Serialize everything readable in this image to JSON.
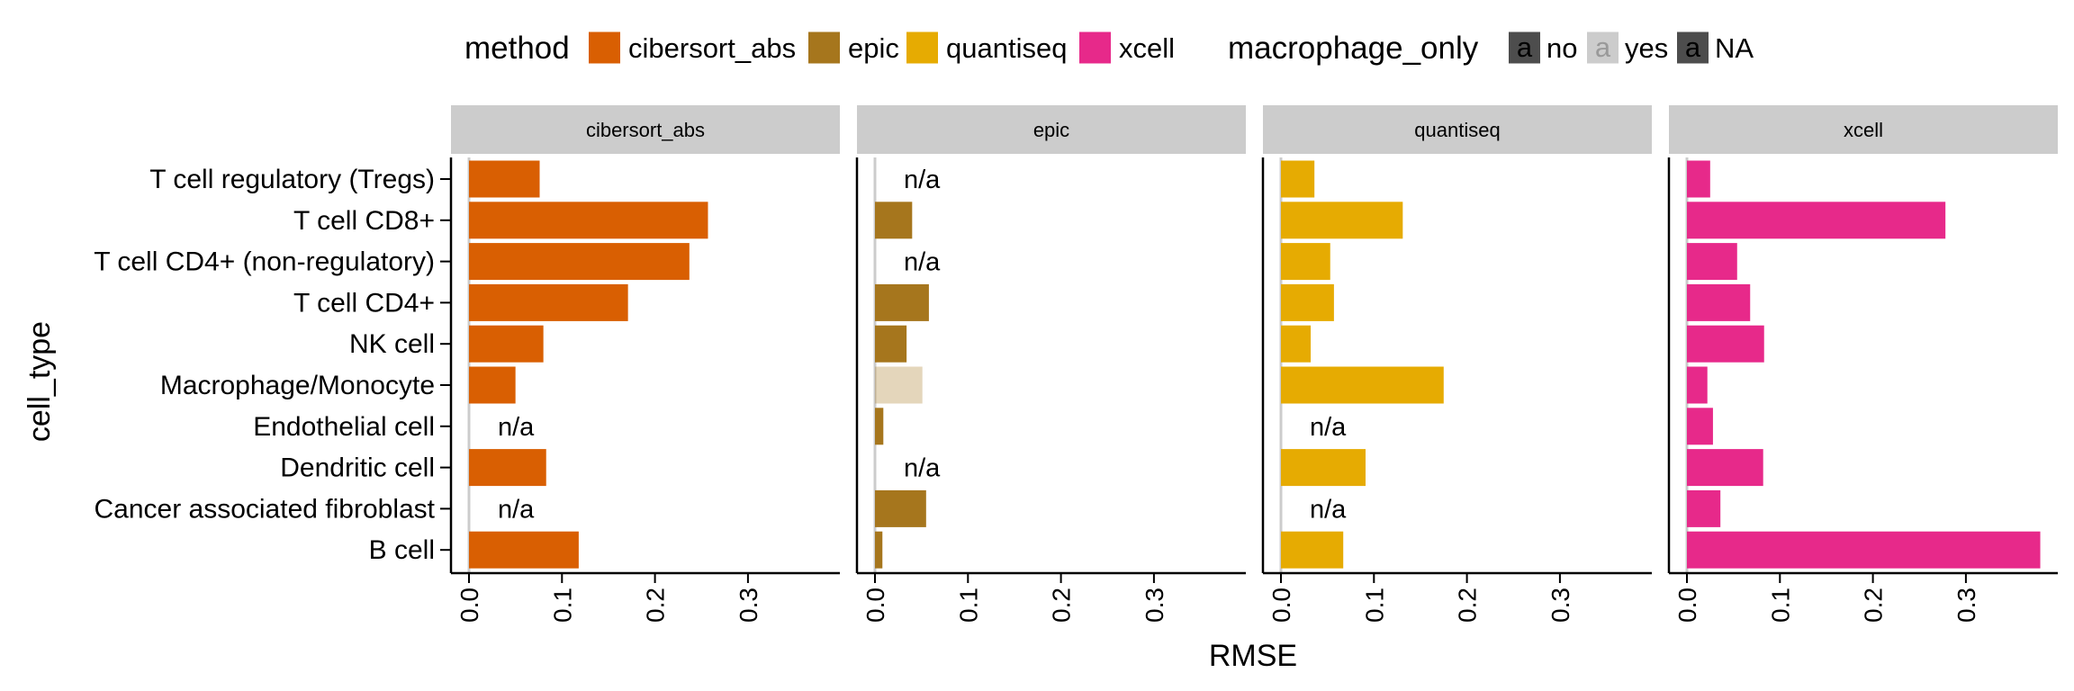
{
  "chart_data": {
    "type": "bar",
    "orientation": "horizontal",
    "facet_by": "method",
    "categories": [
      "T cell regulatory (Tregs)",
      "T cell CD8+",
      "T cell CD4+ (non-regulatory)",
      "T cell CD4+",
      "NK cell",
      "Macrophage/Monocyte",
      "Endothelial cell",
      "Dendritic cell",
      "Cancer associated fibroblast",
      "B cell"
    ],
    "xlabel": "RMSE",
    "ylabel": "cell_type",
    "xlim": [
      0,
      0.38
    ],
    "xticks": [
      "0.0",
      "0.1",
      "0.2",
      "0.3"
    ],
    "xtick_values": [
      0,
      0.1,
      0.2,
      0.3
    ],
    "grid": false,
    "legend_position": "top",
    "missing_label": "n/a",
    "legend": {
      "method": {
        "title": "method",
        "items": [
          {
            "label": "cibersort_abs",
            "color": "#D95F02"
          },
          {
            "label": "epic",
            "color": "#A6761D"
          },
          {
            "label": "quantiseq",
            "color": "#E6AB02"
          },
          {
            "label": "xcell",
            "color": "#E7298A"
          }
        ]
      },
      "macrophage_only": {
        "title": "macrophage_only",
        "glyph": "a",
        "items": [
          {
            "label": "no",
            "swatch": "#4D4D4D",
            "glyph_color": "#000000"
          },
          {
            "label": "yes",
            "swatch": "#CCCCCC",
            "glyph_color": "#999999"
          },
          {
            "label": "NA",
            "swatch": "#4D4D4D",
            "glyph_color": "#000000"
          }
        ]
      }
    },
    "series": [
      {
        "name": "cibersort_abs",
        "color": "#D95F02",
        "values": [
          0.076,
          0.257,
          0.237,
          0.171,
          0.08,
          0.05,
          null,
          0.083,
          null,
          0.118
        ],
        "macrophage_only": [
          "no",
          "no",
          "no",
          "no",
          "no",
          "no",
          null,
          "no",
          null,
          "no"
        ]
      },
      {
        "name": "epic",
        "color": "#A6761D",
        "values": [
          null,
          0.04,
          null,
          0.058,
          0.034,
          0.051,
          0.009,
          null,
          0.055,
          0.008
        ],
        "macrophage_only": [
          null,
          "no",
          null,
          "no",
          "no",
          "yes",
          "no",
          null,
          "no",
          "no"
        ]
      },
      {
        "name": "quantiseq",
        "color": "#E6AB02",
        "values": [
          0.036,
          0.131,
          0.053,
          0.057,
          0.032,
          0.175,
          null,
          0.091,
          null,
          0.067
        ],
        "macrophage_only": [
          "no",
          "no",
          "no",
          "no",
          "no",
          "no",
          null,
          "no",
          null,
          "no"
        ]
      },
      {
        "name": "xcell",
        "color": "#E7298A",
        "values": [
          0.025,
          0.278,
          0.054,
          0.068,
          0.083,
          0.022,
          0.028,
          0.082,
          0.036,
          0.38
        ],
        "macrophage_only": [
          "no",
          "no",
          "no",
          "no",
          "no",
          "no",
          "no",
          "no",
          "no",
          "no"
        ]
      }
    ]
  }
}
